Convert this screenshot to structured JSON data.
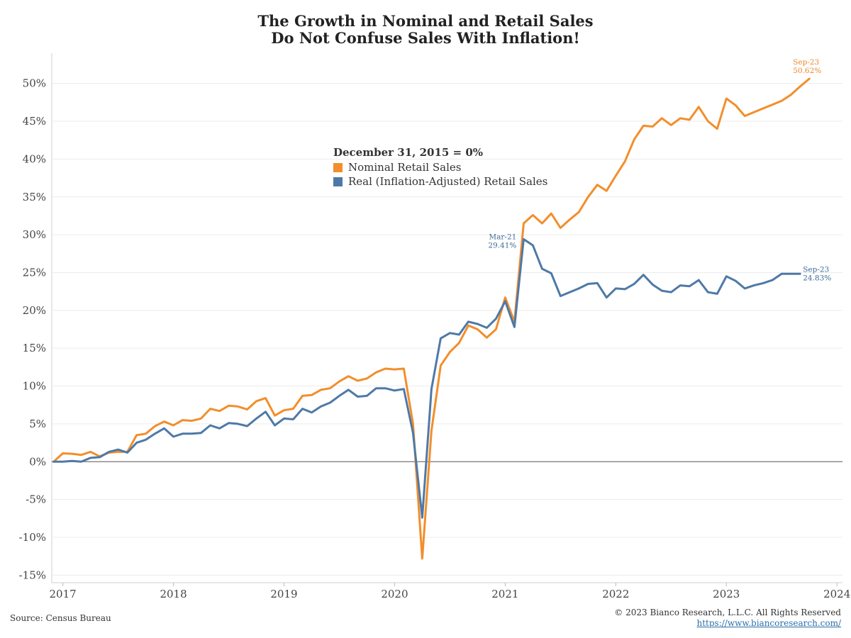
{
  "chart_data": {
    "type": "line",
    "title": "The Growth in Nominal and Retail Sales",
    "subtitle": "Do Not Confuse Sales With Inflation!",
    "ylim": [
      -16,
      54
    ],
    "y_ticks": [
      -15,
      -10,
      -5,
      0,
      5,
      10,
      15,
      20,
      25,
      30,
      35,
      40,
      45,
      50
    ],
    "y_tick_labels": [
      "-15%",
      "-10%",
      "-5%",
      "0%",
      "5%",
      "10%",
      "15%",
      "20%",
      "25%",
      "30%",
      "35%",
      "40%",
      "45%",
      "50%"
    ],
    "x_tick_labels": [
      "2017",
      "2018",
      "2019",
      "2020",
      "2021",
      "2022",
      "2023",
      "2024"
    ],
    "x_ticks": [
      2017,
      2018,
      2019,
      2020,
      2021,
      2022,
      2023,
      2024
    ],
    "xlim": [
      2016.9,
      2024.05
    ],
    "grid": true,
    "legend_title": "December 31, 2015 = 0%",
    "series": [
      {
        "name": "Nominal Retail Sales",
        "color": "#f28e2b",
        "start": "2016-12",
        "values": [
          0.0,
          1.1,
          1.05,
          0.9,
          1.3,
          0.7,
          1.2,
          1.3,
          1.3,
          3.5,
          3.7,
          4.7,
          5.3,
          4.8,
          5.5,
          5.4,
          5.7,
          7.0,
          6.7,
          7.4,
          7.3,
          6.9,
          8.0,
          8.4,
          6.1,
          6.8,
          7.0,
          8.7,
          8.8,
          9.5,
          9.7,
          10.6,
          11.3,
          10.7,
          11.0,
          11.8,
          12.3,
          12.2,
          12.3,
          5.0,
          -12.8,
          4.1,
          12.7,
          14.5,
          15.7,
          18.0,
          17.5,
          16.4,
          17.5,
          21.7,
          18.5,
          31.5,
          32.6,
          31.5,
          32.8,
          30.9,
          32.0,
          33.0,
          35.0,
          36.6,
          35.8,
          37.8,
          39.7,
          42.6,
          44.4,
          44.3,
          45.4,
          44.5,
          45.4,
          45.2,
          46.9,
          45.0,
          44.0,
          48.0,
          47.1,
          45.7,
          46.2,
          46.7,
          47.2,
          47.7,
          48.5,
          49.6,
          50.62
        ]
      },
      {
        "name": "Real (Inflation-Adjusted) Retail Sales",
        "color": "#4e79a7",
        "start": "2016-12",
        "values": [
          0.0,
          0.0,
          0.1,
          0.0,
          0.5,
          0.6,
          1.3,
          1.6,
          1.2,
          2.5,
          2.9,
          3.7,
          4.4,
          3.3,
          3.7,
          3.7,
          3.8,
          4.8,
          4.4,
          5.1,
          5.0,
          4.7,
          5.7,
          6.6,
          4.8,
          5.7,
          5.6,
          7.0,
          6.5,
          7.3,
          7.8,
          8.7,
          9.5,
          8.6,
          8.7,
          9.7,
          9.7,
          9.4,
          9.6,
          3.8,
          -7.4,
          9.6,
          16.3,
          17.0,
          16.8,
          18.5,
          18.2,
          17.7,
          18.9,
          21.2,
          17.8,
          29.41,
          28.6,
          25.5,
          24.9,
          21.9,
          22.4,
          22.9,
          23.5,
          23.6,
          21.7,
          22.9,
          22.8,
          23.5,
          24.7,
          23.4,
          22.6,
          22.4,
          23.3,
          23.2,
          24.0,
          22.4,
          22.2,
          24.5,
          23.9,
          22.9,
          23.3,
          23.6,
          24.0,
          24.83,
          24.83,
          24.83
        ]
      }
    ],
    "annotations": [
      {
        "series": 0,
        "label": "Sep-23",
        "value": "50.62%"
      },
      {
        "series": 1,
        "label": "Mar-21",
        "value": "29.41%"
      },
      {
        "series": 1,
        "label": "Sep-23",
        "value": "24.83%"
      }
    ]
  },
  "footer": {
    "source": "Source: Census Bureau",
    "copyright": "© 2023 Bianco Research, L.L.C. All Rights Reserved",
    "link": "https://www.biancoresearch.com/"
  }
}
